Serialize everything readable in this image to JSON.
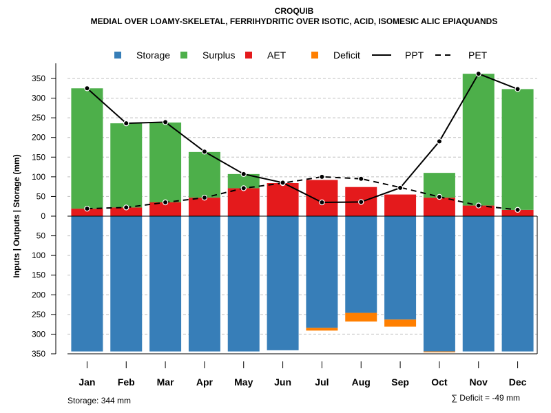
{
  "chart_data": {
    "type": "bar",
    "title": "CROQUIB",
    "subtitle": "MEDIAL OVER LOAMY-SKELETAL, FERRIHYDRITIC OVER ISOTIC, ACID, ISOMESIC ALIC EPIAQUANDS",
    "ylabel": "Inputs | Outputs | Storage    (mm)",
    "ylim": [
      -350,
      350
    ],
    "yticks": [
      350,
      300,
      250,
      200,
      150,
      100,
      50,
      0,
      -50,
      -100,
      -150,
      -200,
      -250,
      -300,
      -350
    ],
    "ytick_labels": [
      "350",
      "300",
      "250",
      "200",
      "150",
      "100",
      "50",
      "0",
      "50",
      "100",
      "150",
      "200",
      "250",
      "300",
      "350"
    ],
    "categories": [
      "Jan",
      "Feb",
      "Mar",
      "Apr",
      "May",
      "Jun",
      "Jul",
      "Aug",
      "Sep",
      "Oct",
      "Nov",
      "Dec"
    ],
    "series": [
      {
        "name": "Storage",
        "color": "#377EB8",
        "values": [
          344,
          344,
          344,
          344,
          344,
          341,
          284,
          246,
          263,
          344,
          344,
          344
        ]
      },
      {
        "name": "Surplus",
        "color": "#4DAF4A",
        "values": [
          306,
          214,
          203,
          116,
          36,
          0,
          0,
          0,
          0,
          63,
          335,
          307
        ]
      },
      {
        "name": "AET",
        "color": "#E41A1C",
        "values": [
          19,
          22,
          35,
          47,
          71,
          84,
          92,
          74,
          55,
          47,
          27,
          16
        ]
      },
      {
        "name": "Deficit",
        "color": "#FF7F00",
        "values": [
          0,
          0,
          0,
          0,
          0,
          0,
          -7,
          -22,
          -18,
          -2,
          0,
          0
        ]
      },
      {
        "name": "PPT",
        "color": "#000000",
        "style": "solid",
        "values": [
          325,
          236,
          239,
          164,
          107,
          85,
          35,
          36,
          72,
          190,
          362,
          323
        ]
      },
      {
        "name": "PET",
        "color": "#000000",
        "style": "dashed",
        "values": [
          19,
          22,
          35,
          47,
          71,
          84,
          100,
          95,
          73,
          49,
          27,
          16
        ]
      }
    ],
    "legend": [
      "Storage",
      "Surplus",
      "AET",
      "Deficit",
      "PPT",
      "PET"
    ],
    "legend_position": "top",
    "grid": true
  },
  "footer": {
    "storage": "Storage: 344 mm",
    "deficit": "∑ Deficit = -49 mm"
  }
}
